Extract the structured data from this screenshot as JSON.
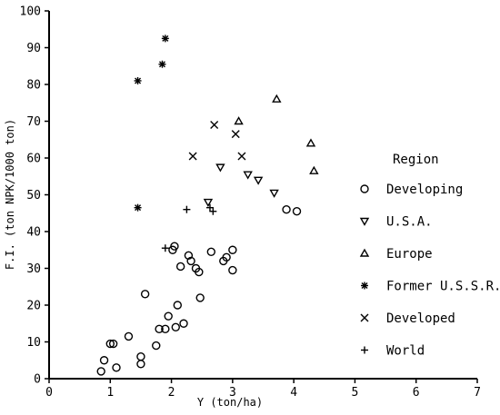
{
  "chart_data": {
    "type": "scatter",
    "title": "",
    "xlabel": "Y (ton/ha)",
    "ylabel": "F.I. (ton NPK/1000 ton)",
    "xlim": [
      0,
      7
    ],
    "ylim": [
      0,
      100
    ],
    "xticks": [
      "0",
      "1",
      "2",
      "3",
      "4",
      "5",
      "6",
      "7"
    ],
    "yticks": [
      "0",
      "10",
      "20",
      "30",
      "40",
      "50",
      "60",
      "70",
      "80",
      "90",
      "100"
    ],
    "grid": false,
    "legend": {
      "title": "Region",
      "placement": "right"
    },
    "series": [
      {
        "name": "Developing",
        "marker": "circle",
        "points": [
          [
            0.85,
            2
          ],
          [
            0.9,
            5
          ],
          [
            1.0,
            9.5
          ],
          [
            1.05,
            9.5
          ],
          [
            1.1,
            3
          ],
          [
            1.3,
            11.5
          ],
          [
            1.5,
            6
          ],
          [
            1.5,
            4
          ],
          [
            1.57,
            23
          ],
          [
            1.75,
            9
          ],
          [
            1.8,
            13.5
          ],
          [
            1.9,
            13.5
          ],
          [
            1.95,
            17
          ],
          [
            2.02,
            35
          ],
          [
            2.05,
            36
          ],
          [
            2.07,
            14
          ],
          [
            2.1,
            20
          ],
          [
            2.15,
            30.5
          ],
          [
            2.2,
            15
          ],
          [
            2.28,
            33.5
          ],
          [
            2.32,
            32
          ],
          [
            2.4,
            30
          ],
          [
            2.45,
            29
          ],
          [
            2.47,
            22
          ],
          [
            2.65,
            34.5
          ],
          [
            2.85,
            32
          ],
          [
            2.9,
            33
          ],
          [
            3.0,
            35
          ],
          [
            3.0,
            29.5
          ],
          [
            3.88,
            46
          ],
          [
            4.05,
            45.5
          ]
        ]
      },
      {
        "name": "U.S.A.",
        "marker": "triangle-down",
        "points": [
          [
            2.6,
            48
          ],
          [
            2.8,
            57.5
          ],
          [
            3.25,
            55.5
          ],
          [
            3.42,
            54
          ],
          [
            3.68,
            50.5
          ]
        ]
      },
      {
        "name": "Europe",
        "marker": "triangle-up",
        "points": [
          [
            3.1,
            70
          ],
          [
            3.72,
            76
          ],
          [
            4.28,
            64
          ],
          [
            4.33,
            56.5
          ]
        ]
      },
      {
        "name": "Former U.S.S.R.",
        "marker": "asterisk",
        "points": [
          [
            1.45,
            81
          ],
          [
            1.45,
            46.5
          ],
          [
            1.85,
            85.5
          ],
          [
            1.9,
            92.5
          ]
        ]
      },
      {
        "name": "Developed",
        "marker": "x",
        "points": [
          [
            2.35,
            60.5
          ],
          [
            2.7,
            69
          ],
          [
            3.05,
            66.5
          ],
          [
            3.15,
            60.5
          ]
        ]
      },
      {
        "name": "World",
        "marker": "plus",
        "points": [
          [
            1.9,
            35.5
          ],
          [
            2.25,
            46
          ],
          [
            2.63,
            46.5
          ],
          [
            2.68,
            45.5
          ]
        ]
      }
    ]
  }
}
